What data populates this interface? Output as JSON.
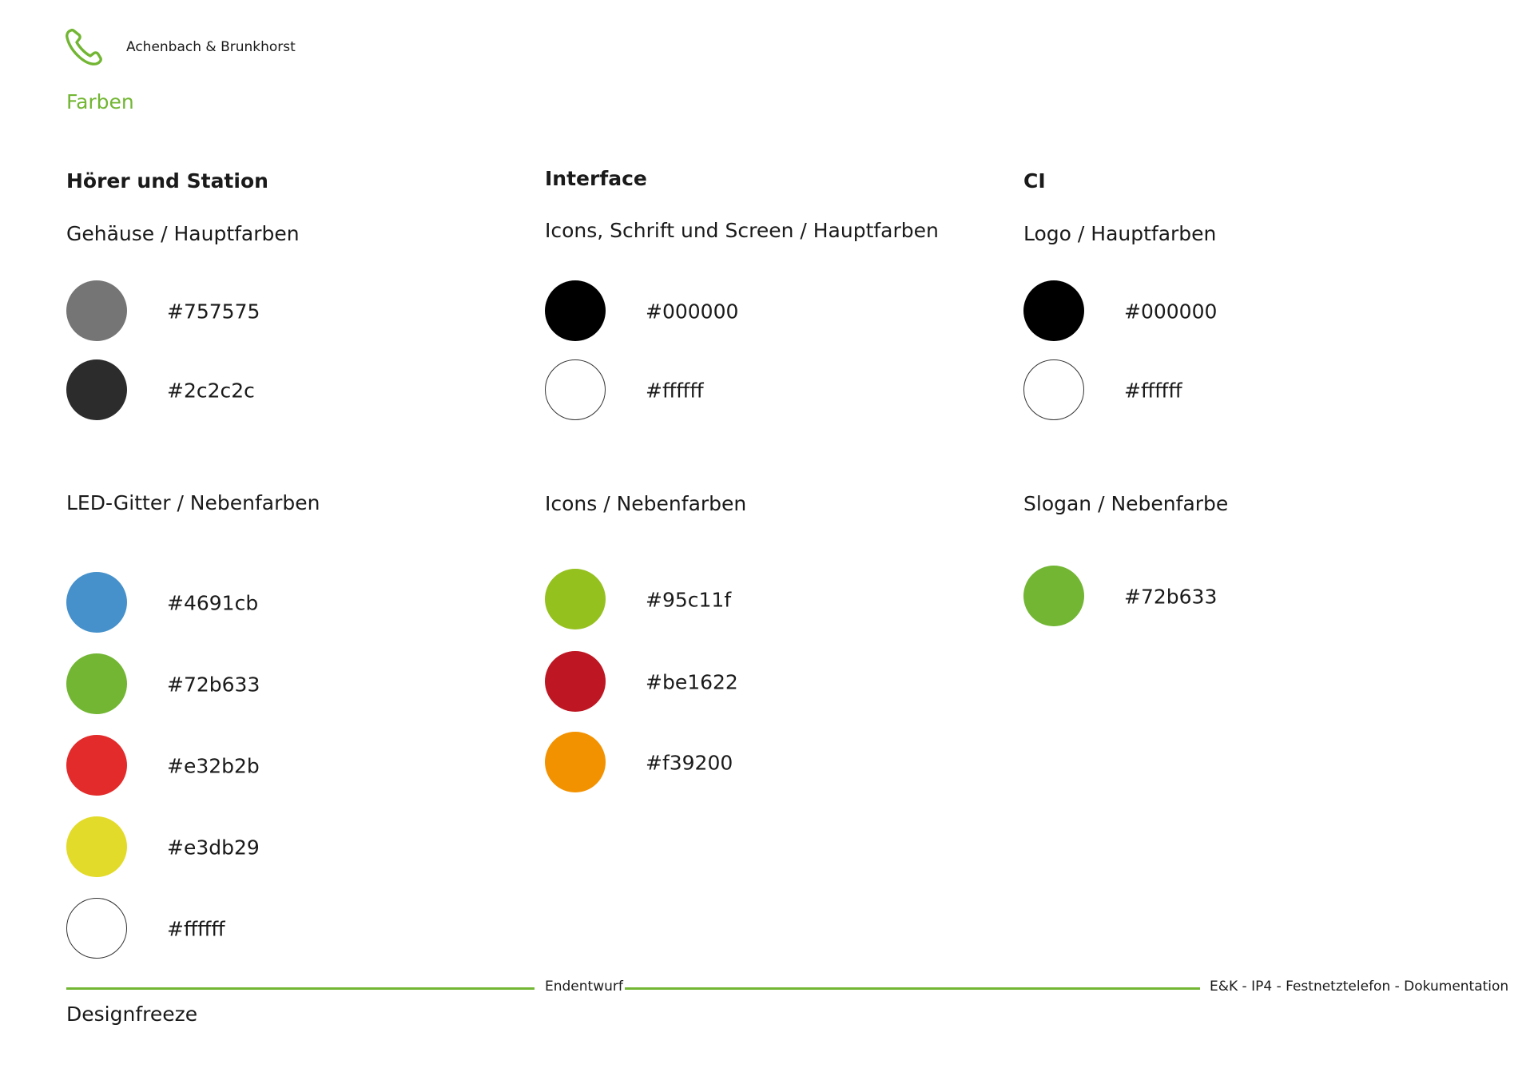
{
  "header": {
    "logo_icon": "phone-handset-icon",
    "company": "Achenbach & Brunkhorst",
    "page_title": "Farben"
  },
  "colors": {
    "accent": "#72b633"
  },
  "columns": [
    {
      "title": "Hörer und Station",
      "groups": [
        {
          "title": "Gehäuse / Hauptfarben",
          "swatches": [
            {
              "hex": "#757575"
            },
            {
              "hex": "#2c2c2c"
            }
          ]
        },
        {
          "title": "LED-Gitter / Nebenfarben",
          "swatches": [
            {
              "hex": "#4691cb"
            },
            {
              "hex": "#72b633"
            },
            {
              "hex": "#e32b2b"
            },
            {
              "hex": "#e3db29"
            },
            {
              "hex": "#ffffff"
            }
          ]
        }
      ]
    },
    {
      "title": "Interface",
      "groups": [
        {
          "title": "Icons, Schrift und Screen / Hauptfarben",
          "swatches": [
            {
              "hex": "#000000"
            },
            {
              "hex": "#ffffff"
            }
          ]
        },
        {
          "title": "Icons / Nebenfarben",
          "swatches": [
            {
              "hex": "#95c11f"
            },
            {
              "hex": "#be1622"
            },
            {
              "hex": "#f39200"
            }
          ]
        }
      ]
    },
    {
      "title": "CI",
      "groups": [
        {
          "title": "Logo  / Hauptfarben",
          "swatches": [
            {
              "hex": "#000000"
            },
            {
              "hex": "#ffffff"
            }
          ]
        },
        {
          "title": "Slogan / Nebenfarbe",
          "swatches": [
            {
              "hex": "#72b633"
            }
          ]
        }
      ]
    }
  ],
  "footer": {
    "status": "Endentwurf",
    "document": "E&K - IP4 - Festnetztelefon - Dokumentation",
    "phase": "Designfreeze"
  }
}
